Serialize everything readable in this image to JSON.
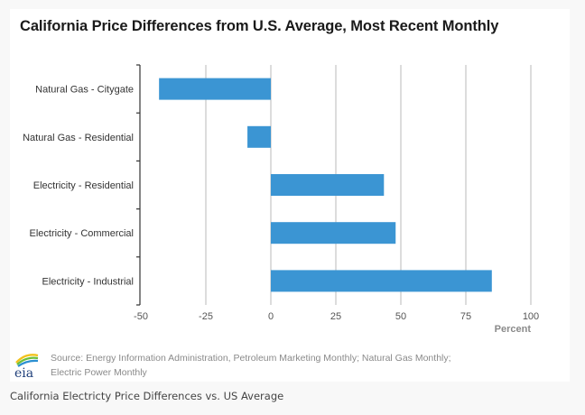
{
  "chart_data": {
    "type": "bar",
    "orientation": "horizontal",
    "title": "California Price Differences from U.S. Average, Most Recent Monthly",
    "xlabel": "Percent",
    "ylabel": "",
    "categories": [
      "Natural Gas - Citygate",
      "Natural Gas - Residential",
      "Electricity - Residential",
      "Electricity - Commercial",
      "Electricity - Industrial"
    ],
    "values": [
      -43,
      -9,
      43.5,
      48,
      85
    ],
    "xlim": [
      -50,
      100
    ],
    "xticks": [
      -50,
      -25,
      0,
      25,
      50,
      75,
      100
    ],
    "xtick_labels": [
      "-50",
      "-25",
      "0",
      "25",
      "50",
      "75",
      "100"
    ],
    "grid": "vertical",
    "legend": "none",
    "bar_color": "#3b95d3",
    "grid_color": "#d4d4d4"
  },
  "footer": {
    "source_line1": "Source: Energy Information Administration, Petroleum Marketing Monthly; Natural Gas Monthly;",
    "source_line2": "Electric Power Monthly",
    "logo_text": "eia"
  },
  "caption": "California Electricty Price Differences vs. US Average"
}
